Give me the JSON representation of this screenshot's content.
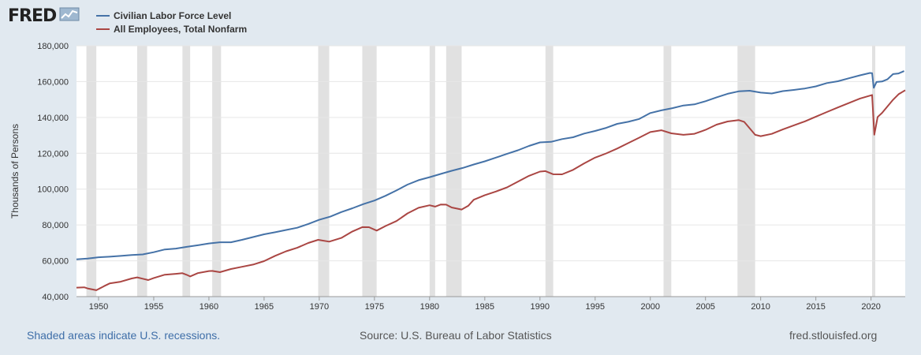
{
  "header": {
    "logo_text": "FRED",
    "logo_icon": "fred-chart-icon"
  },
  "footer": {
    "recession_note": "Shaded areas indicate U.S. recessions.",
    "source": "Source: U.S. Bureau of Labor Statistics",
    "site": "fred.stlouisfed.org"
  },
  "colors": {
    "background": "#e1e9f0",
    "plot_background": "#ffffff",
    "recession_shade": "#e1e1e1",
    "gridline": "#e6e6e6",
    "series_labor": "#4572a7",
    "series_nonfarm": "#aa4643"
  },
  "chart_data": {
    "type": "line",
    "title": "",
    "xlabel": "",
    "ylabel": "Thousands of Persons",
    "xlim": [
      1948.0,
      2023.1
    ],
    "ylim": [
      40000,
      180000
    ],
    "y_ticks": [
      40000,
      60000,
      80000,
      100000,
      120000,
      140000,
      160000,
      180000
    ],
    "y_tick_labels": [
      "40,000",
      "60,000",
      "80,000",
      "100,000",
      "120,000",
      "140,000",
      "160,000",
      "180,000"
    ],
    "x_ticks": [
      1950,
      1955,
      1960,
      1965,
      1970,
      1975,
      1980,
      1985,
      1990,
      1995,
      2000,
      2005,
      2010,
      2015,
      2020
    ],
    "x_tick_labels": [
      "1950",
      "1955",
      "1960",
      "1965",
      "1970",
      "1975",
      "1980",
      "1985",
      "1990",
      "1995",
      "2000",
      "2005",
      "2010",
      "2015",
      "2020"
    ],
    "grid": true,
    "legend_position": "top-left",
    "recessions": [
      [
        1948.9,
        1949.8
      ],
      [
        1953.5,
        1954.4
      ],
      [
        1957.6,
        1958.3
      ],
      [
        1960.3,
        1961.1
      ],
      [
        1969.9,
        1970.9
      ],
      [
        1973.9,
        1975.2
      ],
      [
        1980.0,
        1980.5
      ],
      [
        1981.5,
        1982.9
      ],
      [
        1990.5,
        1991.2
      ],
      [
        2001.2,
        2001.9
      ],
      [
        2007.9,
        2009.5
      ],
      [
        2020.1,
        2020.3
      ]
    ],
    "series": [
      {
        "name": "Civilian Labor Force Level",
        "color": "#4572a7",
        "points": [
          [
            1948.0,
            60800
          ],
          [
            1949.0,
            61500
          ],
          [
            1950.0,
            62200
          ],
          [
            1951.0,
            62300
          ],
          [
            1952.0,
            62500
          ],
          [
            1953.0,
            63000
          ],
          [
            1954.0,
            63500
          ],
          [
            1955.0,
            65000
          ],
          [
            1956.0,
            66600
          ],
          [
            1957.0,
            66900
          ],
          [
            1958.0,
            67600
          ],
          [
            1959.0,
            68400
          ],
          [
            1960.0,
            69600
          ],
          [
            1961.0,
            70500
          ],
          [
            1962.0,
            70600
          ],
          [
            1963.0,
            71800
          ],
          [
            1964.0,
            73100
          ],
          [
            1965.0,
            74500
          ],
          [
            1966.0,
            75800
          ],
          [
            1967.0,
            77300
          ],
          [
            1968.0,
            78700
          ],
          [
            1969.0,
            80700
          ],
          [
            1970.0,
            82800
          ],
          [
            1971.0,
            84400
          ],
          [
            1972.0,
            87000
          ],
          [
            1973.0,
            89400
          ],
          [
            1974.0,
            91900
          ],
          [
            1975.0,
            93800
          ],
          [
            1976.0,
            96200
          ],
          [
            1977.0,
            99000
          ],
          [
            1978.0,
            102300
          ],
          [
            1979.0,
            105000
          ],
          [
            1980.0,
            106900
          ],
          [
            1981.0,
            108700
          ],
          [
            1982.0,
            110200
          ],
          [
            1983.0,
            111600
          ],
          [
            1984.0,
            113500
          ],
          [
            1985.0,
            115500
          ],
          [
            1986.0,
            117800
          ],
          [
            1987.0,
            119900
          ],
          [
            1988.0,
            121700
          ],
          [
            1989.0,
            123900
          ],
          [
            1990.0,
            125800
          ],
          [
            1991.0,
            126300
          ],
          [
            1992.0,
            128100
          ],
          [
            1993.0,
            129200
          ],
          [
            1994.0,
            131100
          ],
          [
            1995.0,
            132300
          ],
          [
            1996.0,
            133900
          ],
          [
            1997.0,
            136300
          ],
          [
            1998.0,
            137700
          ],
          [
            1999.0,
            139400
          ],
          [
            2000.0,
            142600
          ],
          [
            2001.0,
            143800
          ],
          [
            2002.0,
            144900
          ],
          [
            2003.0,
            146500
          ],
          [
            2004.0,
            147400
          ],
          [
            2005.0,
            149300
          ],
          [
            2006.0,
            151400
          ],
          [
            2007.0,
            153100
          ],
          [
            2008.0,
            154300
          ],
          [
            2009.0,
            154700
          ],
          [
            2010.0,
            153900
          ],
          [
            2011.0,
            153600
          ],
          [
            2012.0,
            154900
          ],
          [
            2013.0,
            155300
          ],
          [
            2014.0,
            155900
          ],
          [
            2015.0,
            157100
          ],
          [
            2016.0,
            159200
          ],
          [
            2017.0,
            160400
          ],
          [
            2018.0,
            162100
          ],
          [
            2019.0,
            163500
          ],
          [
            2019.9,
            164600
          ],
          [
            2020.1,
            164500
          ],
          [
            2020.25,
            156500
          ],
          [
            2020.5,
            160000
          ],
          [
            2021.0,
            160300
          ],
          [
            2021.5,
            161400
          ],
          [
            2022.0,
            164000
          ],
          [
            2022.5,
            164300
          ],
          [
            2023.0,
            165800
          ]
        ]
      },
      {
        "name": "All Employees, Total Nonfarm",
        "color": "#aa4643",
        "points": [
          [
            1948.0,
            45000
          ],
          [
            1948.7,
            45400
          ],
          [
            1949.0,
            44800
          ],
          [
            1949.8,
            43600
          ],
          [
            1950.0,
            44000
          ],
          [
            1950.5,
            45600
          ],
          [
            1951.0,
            47300
          ],
          [
            1952.0,
            48500
          ],
          [
            1953.0,
            50400
          ],
          [
            1953.5,
            50800
          ],
          [
            1954.0,
            49800
          ],
          [
            1954.5,
            49000
          ],
          [
            1955.0,
            50300
          ],
          [
            1956.0,
            52400
          ],
          [
            1957.0,
            53000
          ],
          [
            1957.6,
            53200
          ],
          [
            1958.0,
            52000
          ],
          [
            1958.3,
            51000
          ],
          [
            1959.0,
            53000
          ],
          [
            1960.0,
            54400
          ],
          [
            1960.3,
            54600
          ],
          [
            1961.0,
            53800
          ],
          [
            1962.0,
            55300
          ],
          [
            1963.0,
            56400
          ],
          [
            1964.0,
            57700
          ],
          [
            1965.0,
            59900
          ],
          [
            1966.0,
            63000
          ],
          [
            1967.0,
            65500
          ],
          [
            1968.0,
            67200
          ],
          [
            1969.0,
            69700
          ],
          [
            1969.9,
            71500
          ],
          [
            1970.9,
            70700
          ],
          [
            1972.0,
            73000
          ],
          [
            1973.0,
            76600
          ],
          [
            1973.9,
            78800
          ],
          [
            1974.5,
            78500
          ],
          [
            1975.2,
            76600
          ],
          [
            1976.0,
            79400
          ],
          [
            1977.0,
            82400
          ],
          [
            1978.0,
            86700
          ],
          [
            1979.0,
            89600
          ],
          [
            1980.0,
            90800
          ],
          [
            1980.5,
            90000
          ],
          [
            1981.0,
            91300
          ],
          [
            1981.5,
            91500
          ],
          [
            1982.0,
            90000
          ],
          [
            1982.9,
            88700
          ],
          [
            1983.5,
            90500
          ],
          [
            1984.0,
            93800
          ],
          [
            1985.0,
            96500
          ],
          [
            1986.0,
            98800
          ],
          [
            1987.0,
            101200
          ],
          [
            1988.0,
            104300
          ],
          [
            1989.0,
            107300
          ],
          [
            1990.0,
            109500
          ],
          [
            1990.5,
            109900
          ],
          [
            1991.2,
            108400
          ],
          [
            1992.0,
            108500
          ],
          [
            1993.0,
            110900
          ],
          [
            1994.0,
            114300
          ],
          [
            1995.0,
            117300
          ],
          [
            1996.0,
            119700
          ],
          [
            1997.0,
            122700
          ],
          [
            1998.0,
            125900
          ],
          [
            1999.0,
            128900
          ],
          [
            2000.0,
            131800
          ],
          [
            2001.0,
            132600
          ],
          [
            2001.9,
            130900
          ],
          [
            2003.0,
            130300
          ],
          [
            2004.0,
            131100
          ],
          [
            2005.0,
            133300
          ],
          [
            2006.0,
            136000
          ],
          [
            2007.0,
            137500
          ],
          [
            2008.0,
            138300
          ],
          [
            2008.5,
            137500
          ],
          [
            2009.5,
            130500
          ],
          [
            2010.0,
            129800
          ],
          [
            2011.0,
            130900
          ],
          [
            2012.0,
            133100
          ],
          [
            2013.0,
            135300
          ],
          [
            2014.0,
            137700
          ],
          [
            2015.0,
            140600
          ],
          [
            2016.0,
            143300
          ],
          [
            2017.0,
            145700
          ],
          [
            2018.0,
            147900
          ],
          [
            2019.0,
            150300
          ],
          [
            2020.1,
            152400
          ],
          [
            2020.3,
            130500
          ],
          [
            2020.6,
            140500
          ],
          [
            2021.0,
            142700
          ],
          [
            2022.0,
            149800
          ],
          [
            2022.5,
            152700
          ],
          [
            2023.1,
            155000
          ]
        ]
      }
    ]
  }
}
